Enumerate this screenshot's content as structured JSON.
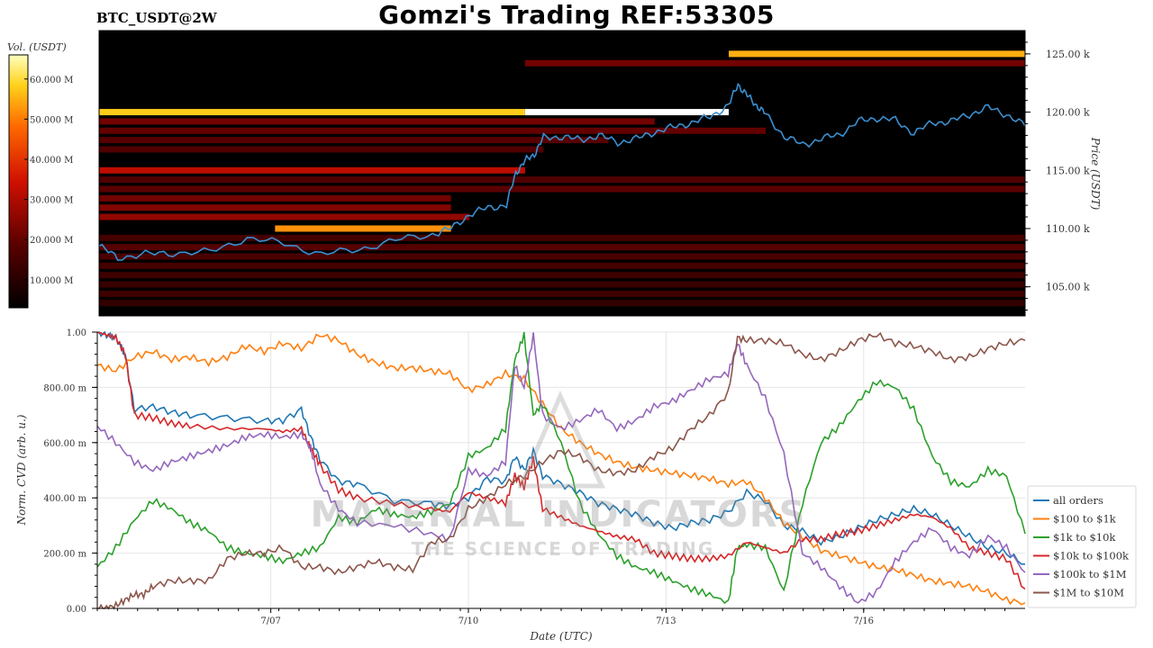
{
  "header": {
    "title": "Gomzi's Trading REF:53305",
    "symbol": "BTC_USDT@2W"
  },
  "watermark": {
    "line1": "MATERIAL INDICATORS",
    "line2": "THE SCIENCE OF TRADING"
  },
  "colors": {
    "price_line": "#3b8fd0",
    "heatmap_bg": "#000000"
  },
  "chart_data": [
    {
      "type": "heatmap",
      "colorbar": {
        "label": "Vol. (USDT)",
        "ticks": [
          "10.000 M",
          "20.000 M",
          "30.000 M",
          "40.000 M",
          "50.000 M",
          "60.000 M"
        ],
        "tick_values": [
          10,
          20,
          30,
          40,
          50,
          60
        ],
        "range": [
          3,
          66
        ]
      },
      "ylabel": "Price (USDT)",
      "yticks": [
        "105.00 k",
        "110.00 k",
        "115.00 k",
        "120.00 k",
        "125.00 k"
      ],
      "ytick_values": [
        105000,
        110000,
        115000,
        120000,
        125000
      ],
      "ylim": [
        102500,
        127000
      ],
      "xlim": [
        0,
        100
      ],
      "bands": [
        {
          "price": 125000,
          "x0": 68,
          "x1": 100,
          "vol": 55
        },
        {
          "price": 124200,
          "x0": 46,
          "x1": 100,
          "vol": 22
        },
        {
          "price": 120000,
          "x0": 0,
          "x1": 46,
          "vol": 58
        },
        {
          "price": 120000,
          "x0": 46,
          "x1": 68,
          "vol": 66
        },
        {
          "price": 119200,
          "x0": 0,
          "x1": 60,
          "vol": 22
        },
        {
          "price": 118400,
          "x0": 0,
          "x1": 72,
          "vol": 20
        },
        {
          "price": 117600,
          "x0": 0,
          "x1": 55,
          "vol": 18
        },
        {
          "price": 116800,
          "x0": 0,
          "x1": 48,
          "vol": 17
        },
        {
          "price": 115000,
          "x0": 0,
          "x1": 46,
          "vol": 32
        },
        {
          "price": 114200,
          "x0": 0,
          "x1": 100,
          "vol": 17
        },
        {
          "price": 113400,
          "x0": 0,
          "x1": 100,
          "vol": 19
        },
        {
          "price": 112600,
          "x0": 0,
          "x1": 38,
          "vol": 22
        },
        {
          "price": 111800,
          "x0": 0,
          "x1": 38,
          "vol": 24
        },
        {
          "price": 111000,
          "x0": 0,
          "x1": 40,
          "vol": 26
        },
        {
          "price": 110000,
          "x0": 19,
          "x1": 38,
          "vol": 52
        },
        {
          "price": 109200,
          "x0": 0,
          "x1": 100,
          "vol": 15
        },
        {
          "price": 108400,
          "x0": 0,
          "x1": 100,
          "vol": 18
        },
        {
          "price": 107600,
          "x0": 0,
          "x1": 100,
          "vol": 16
        },
        {
          "price": 106800,
          "x0": 0,
          "x1": 100,
          "vol": 15
        },
        {
          "price": 106000,
          "x0": 0,
          "x1": 100,
          "vol": 14
        },
        {
          "price": 105200,
          "x0": 0,
          "x1": 100,
          "vol": 13
        },
        {
          "price": 104400,
          "x0": 0,
          "x1": 100,
          "vol": 14
        },
        {
          "price": 103600,
          "x0": 0,
          "x1": 100,
          "vol": 12
        }
      ],
      "price_path": {
        "x": [
          0,
          2,
          5,
          8,
          12,
          16,
          20,
          24,
          28,
          32,
          36,
          38,
          40,
          42,
          44,
          45,
          46,
          47,
          48,
          50,
          52,
          54,
          56,
          58,
          60,
          62,
          64,
          66,
          68,
          69,
          70,
          71,
          72,
          74,
          76,
          78,
          80,
          82,
          84,
          86,
          88,
          90,
          92,
          94,
          96,
          98,
          100
        ],
        "y": [
          108500,
          107500,
          107800,
          107900,
          108000,
          109200,
          108700,
          107800,
          108200,
          109000,
          109500,
          110000,
          111200,
          111800,
          112000,
          114800,
          115800,
          116400,
          117800,
          117900,
          117600,
          118000,
          117400,
          117700,
          118300,
          118700,
          119100,
          119600,
          120600,
          122400,
          121400,
          120600,
          119800,
          117900,
          117200,
          117700,
          118100,
          119200,
          119500,
          119300,
          118200,
          119100,
          119200,
          119800,
          120400,
          119800,
          118800
        ]
      }
    },
    {
      "type": "line",
      "xlabel": "Date (UTC)",
      "ylabel": "Norm. CVD (arb. u.)",
      "xlim": [
        0,
        100
      ],
      "ylim": [
        0,
        1
      ],
      "xticks": [
        "7/07",
        "7/10",
        "7/13",
        "7/16"
      ],
      "xtick_positions": [
        18.7,
        40.0,
        61.3,
        82.6
      ],
      "yticks": [
        "0.00",
        "200.00 m",
        "400.00 m",
        "600.00 m",
        "800.00 m",
        "1.00"
      ],
      "ytick_values": [
        0,
        0.2,
        0.4,
        0.6,
        0.8,
        1.0
      ],
      "grid": true,
      "legend_position": "right",
      "series": [
        {
          "name": "all orders",
          "color": "#1f77b4",
          "x": [
            0,
            1,
            2,
            3,
            4,
            6,
            8,
            10,
            14,
            18,
            20,
            22,
            23,
            24,
            26,
            28,
            32,
            36,
            38,
            40,
            42,
            44,
            45,
            46,
            47,
            48,
            50,
            52,
            54,
            56,
            58,
            60,
            62,
            64,
            66,
            68,
            70,
            72,
            74,
            76,
            78,
            80,
            82,
            84,
            86,
            88,
            90,
            92,
            94,
            96,
            98,
            100
          ],
          "y": [
            1.0,
            0.99,
            0.98,
            0.92,
            0.72,
            0.73,
            0.71,
            0.7,
            0.69,
            0.68,
            0.68,
            0.72,
            0.62,
            0.54,
            0.46,
            0.45,
            0.39,
            0.38,
            0.37,
            0.4,
            0.47,
            0.46,
            0.55,
            0.5,
            0.57,
            0.48,
            0.45,
            0.42,
            0.38,
            0.36,
            0.34,
            0.31,
            0.29,
            0.31,
            0.32,
            0.35,
            0.42,
            0.39,
            0.3,
            0.28,
            0.24,
            0.26,
            0.29,
            0.32,
            0.34,
            0.36,
            0.34,
            0.3,
            0.26,
            0.22,
            0.2,
            0.16
          ]
        },
        {
          "name": "$100 to $1k",
          "color": "#ff7f0e",
          "x": [
            0,
            2,
            4,
            6,
            8,
            10,
            12,
            14,
            16,
            18,
            20,
            22,
            24,
            26,
            28,
            30,
            32,
            34,
            36,
            38,
            40,
            42,
            44,
            46,
            48,
            50,
            52,
            54,
            56,
            58,
            60,
            62,
            64,
            66,
            68,
            70,
            72,
            74,
            76,
            78,
            80,
            82,
            84,
            86,
            88,
            90,
            92,
            94,
            96,
            98,
            100
          ],
          "y": [
            0.88,
            0.86,
            0.91,
            0.93,
            0.9,
            0.91,
            0.89,
            0.91,
            0.95,
            0.93,
            0.96,
            0.94,
            0.99,
            0.97,
            0.92,
            0.89,
            0.87,
            0.87,
            0.86,
            0.85,
            0.79,
            0.81,
            0.85,
            0.83,
            0.74,
            0.65,
            0.6,
            0.56,
            0.53,
            0.51,
            0.5,
            0.49,
            0.48,
            0.47,
            0.45,
            0.46,
            0.4,
            0.31,
            0.26,
            0.21,
            0.19,
            0.17,
            0.15,
            0.14,
            0.12,
            0.1,
            0.09,
            0.08,
            0.06,
            0.03,
            0.02
          ]
        },
        {
          "name": "$1k to $10k",
          "color": "#2ca02c",
          "x": [
            0,
            2,
            4,
            6,
            8,
            10,
            12,
            14,
            16,
            18,
            20,
            22,
            24,
            26,
            28,
            30,
            32,
            34,
            36,
            38,
            40,
            42,
            44,
            45,
            46,
            47,
            48,
            50,
            52,
            54,
            56,
            58,
            60,
            62,
            64,
            66,
            68,
            69,
            70,
            72,
            74,
            76,
            78,
            80,
            82,
            84,
            86,
            88,
            90,
            92,
            94,
            96,
            98,
            100
          ],
          "y": [
            0.15,
            0.22,
            0.32,
            0.39,
            0.36,
            0.31,
            0.28,
            0.22,
            0.2,
            0.19,
            0.17,
            0.2,
            0.22,
            0.33,
            0.31,
            0.36,
            0.34,
            0.33,
            0.35,
            0.38,
            0.55,
            0.58,
            0.65,
            0.9,
            0.99,
            0.7,
            0.74,
            0.6,
            0.38,
            0.27,
            0.19,
            0.15,
            0.13,
            0.1,
            0.07,
            0.05,
            0.02,
            0.22,
            0.23,
            0.22,
            0.06,
            0.38,
            0.6,
            0.66,
            0.75,
            0.82,
            0.8,
            0.72,
            0.55,
            0.46,
            0.44,
            0.5,
            0.48,
            0.27
          ]
        },
        {
          "name": "$10k to $100k",
          "color": "#d62728",
          "x": [
            0,
            1,
            2,
            3,
            4,
            6,
            8,
            10,
            14,
            18,
            20,
            22,
            23,
            24,
            26,
            28,
            32,
            36,
            38,
            40,
            42,
            44,
            45,
            46,
            47,
            48,
            50,
            52,
            54,
            56,
            58,
            60,
            62,
            64,
            66,
            68,
            70,
            72,
            74,
            76,
            78,
            80,
            82,
            84,
            86,
            88,
            90,
            92,
            94,
            96,
            98,
            100
          ],
          "y": [
            1.0,
            0.99,
            0.98,
            0.92,
            0.7,
            0.69,
            0.67,
            0.66,
            0.65,
            0.65,
            0.64,
            0.65,
            0.58,
            0.52,
            0.43,
            0.4,
            0.38,
            0.36,
            0.35,
            0.42,
            0.4,
            0.38,
            0.48,
            0.44,
            0.54,
            0.36,
            0.33,
            0.3,
            0.28,
            0.26,
            0.25,
            0.2,
            0.19,
            0.18,
            0.18,
            0.19,
            0.24,
            0.22,
            0.2,
            0.25,
            0.25,
            0.27,
            0.28,
            0.3,
            0.32,
            0.34,
            0.33,
            0.29,
            0.22,
            0.2,
            0.18,
            0.07
          ]
        },
        {
          "name": "$100k to $1M",
          "color": "#9467bd",
          "x": [
            0,
            2,
            4,
            6,
            8,
            10,
            12,
            14,
            16,
            18,
            20,
            22,
            23,
            24,
            26,
            28,
            32,
            36,
            38,
            40,
            42,
            44,
            45,
            46,
            47,
            48,
            50,
            52,
            54,
            56,
            58,
            60,
            62,
            64,
            66,
            68,
            69,
            70,
            72,
            74,
            76,
            78,
            80,
            82,
            84,
            86,
            88,
            90,
            92,
            94,
            96,
            98,
            100
          ],
          "y": [
            0.66,
            0.6,
            0.53,
            0.5,
            0.53,
            0.55,
            0.57,
            0.59,
            0.62,
            0.63,
            0.62,
            0.63,
            0.58,
            0.45,
            0.36,
            0.31,
            0.3,
            0.27,
            0.25,
            0.5,
            0.48,
            0.53,
            0.88,
            0.8,
            0.99,
            0.7,
            0.65,
            0.68,
            0.72,
            0.65,
            0.68,
            0.73,
            0.75,
            0.79,
            0.83,
            0.85,
            0.96,
            0.88,
            0.76,
            0.56,
            0.2,
            0.15,
            0.08,
            0.02,
            0.06,
            0.17,
            0.24,
            0.29,
            0.22,
            0.19,
            0.26,
            0.22,
            0.13
          ]
        },
        {
          "name": "$1M to $10M",
          "color": "#8c564b",
          "x": [
            0,
            1,
            2,
            3,
            4,
            5,
            6,
            8,
            10,
            12,
            14,
            16,
            18,
            20,
            22,
            24,
            26,
            28,
            30,
            32,
            34,
            36,
            38,
            40,
            42,
            44,
            46,
            48,
            50,
            52,
            54,
            56,
            58,
            60,
            62,
            64,
            66,
            68,
            69,
            70,
            72,
            74,
            76,
            78,
            80,
            82,
            84,
            86,
            88,
            90,
            92,
            94,
            96,
            98,
            100
          ],
          "y": [
            0.0,
            0.0,
            0.01,
            0.03,
            0.05,
            0.05,
            0.08,
            0.1,
            0.1,
            0.1,
            0.18,
            0.2,
            0.2,
            0.22,
            0.15,
            0.15,
            0.13,
            0.15,
            0.17,
            0.15,
            0.14,
            0.24,
            0.25,
            0.36,
            0.4,
            0.45,
            0.48,
            0.53,
            0.57,
            0.55,
            0.5,
            0.49,
            0.5,
            0.55,
            0.58,
            0.65,
            0.7,
            0.78,
            0.98,
            0.97,
            0.97,
            0.96,
            0.92,
            0.9,
            0.93,
            0.97,
            0.99,
            0.96,
            0.95,
            0.93,
            0.9,
            0.91,
            0.94,
            0.96,
            0.97
          ]
        }
      ]
    }
  ]
}
